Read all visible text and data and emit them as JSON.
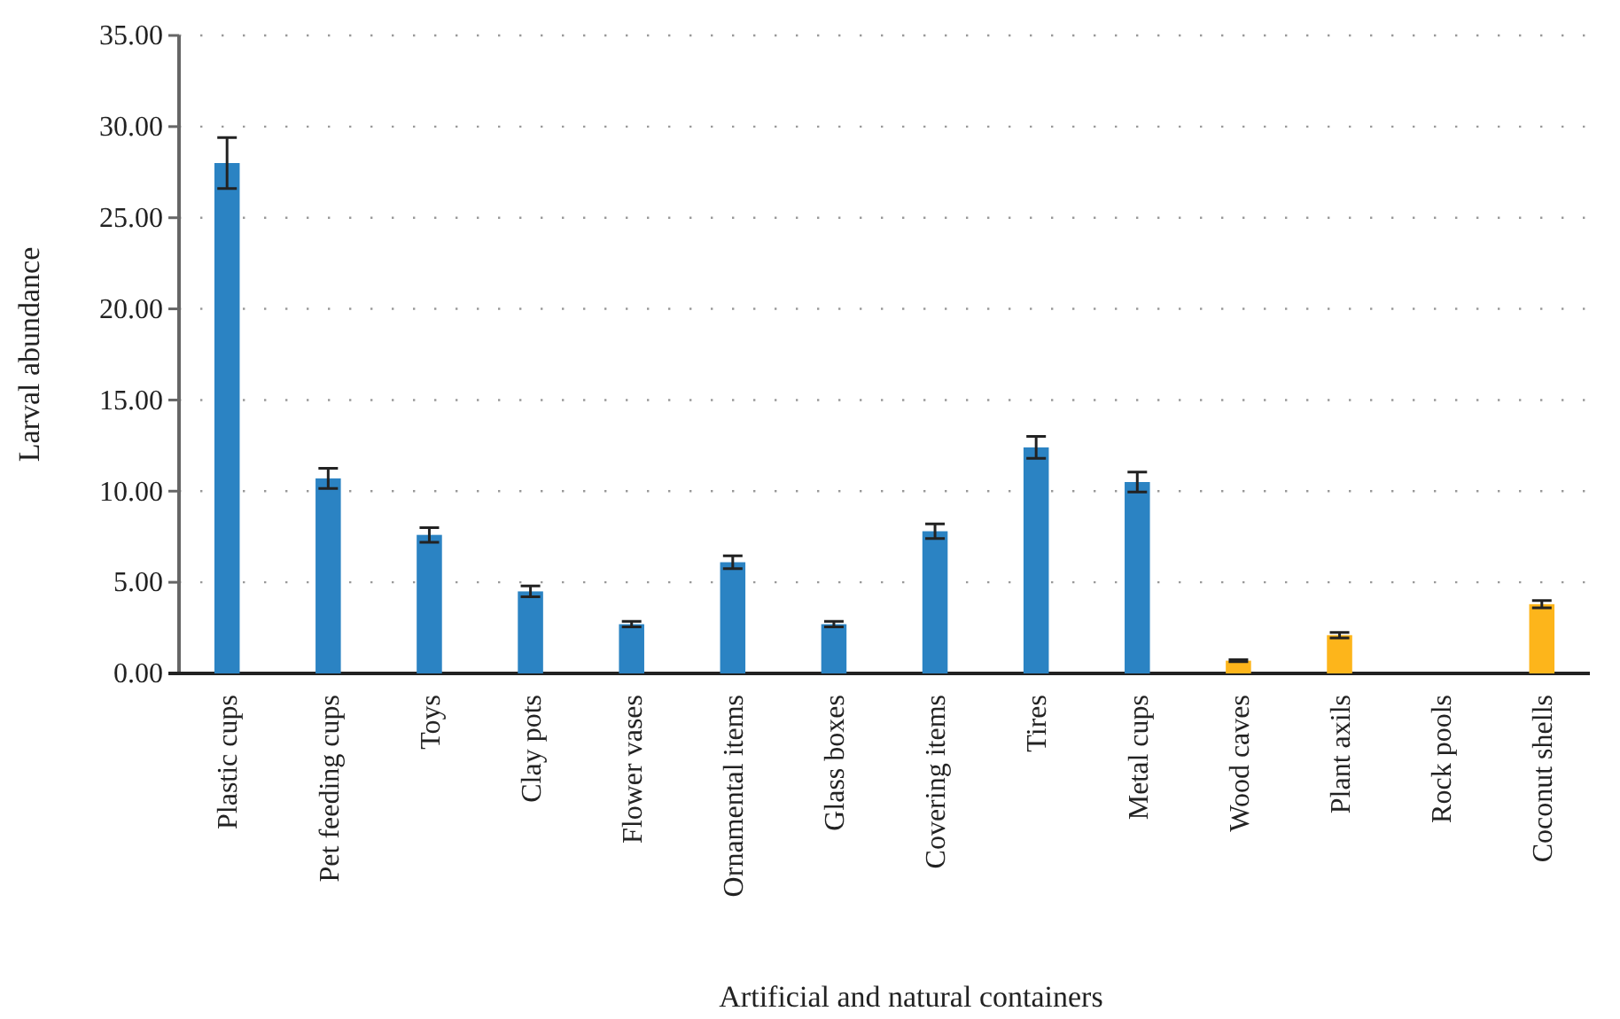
{
  "chart_data": {
    "type": "bar",
    "xlabel": "Artificial and natural containers",
    "ylabel": "Larval abundance",
    "categories": [
      "Plastic cups",
      "Pet feeding cups",
      "Toys",
      "Clay pots",
      "Flower vases",
      "Ornamental items",
      "Glass boxes",
      "Covering items",
      "Tires",
      "Metal cups",
      "Wood caves",
      "Plant axils",
      "Rock pools",
      "Coconut shells"
    ],
    "values": [
      28.0,
      10.7,
      7.6,
      4.5,
      2.7,
      6.1,
      2.7,
      7.8,
      12.4,
      10.5,
      0.7,
      2.1,
      0,
      3.8
    ],
    "errors": [
      1.4,
      0.55,
      0.4,
      0.3,
      0.15,
      0.35,
      0.15,
      0.4,
      0.6,
      0.55,
      0.05,
      0.15,
      null,
      0.2
    ],
    "colors": [
      "#2b83c3",
      "#2b83c3",
      "#2b83c3",
      "#2b83c3",
      "#2b83c3",
      "#2b83c3",
      "#2b83c3",
      "#2b83c3",
      "#2b83c3",
      "#2b83c3",
      "#fdb51b",
      "#fdb51b",
      "#fdb51b",
      "#fdb51b"
    ],
    "ylim": [
      0,
      35
    ],
    "yticks": [
      {
        "value": 0,
        "label": "0.00"
      },
      {
        "value": 5,
        "label": "5.00"
      },
      {
        "value": 10,
        "label": "10.00"
      },
      {
        "value": 15,
        "label": "15.00"
      },
      {
        "value": 20,
        "label": "20.00"
      },
      {
        "value": 25,
        "label": "25.00"
      },
      {
        "value": 30,
        "label": "30.00"
      },
      {
        "value": 35,
        "label": "35.00"
      }
    ],
    "grid": "y"
  }
}
